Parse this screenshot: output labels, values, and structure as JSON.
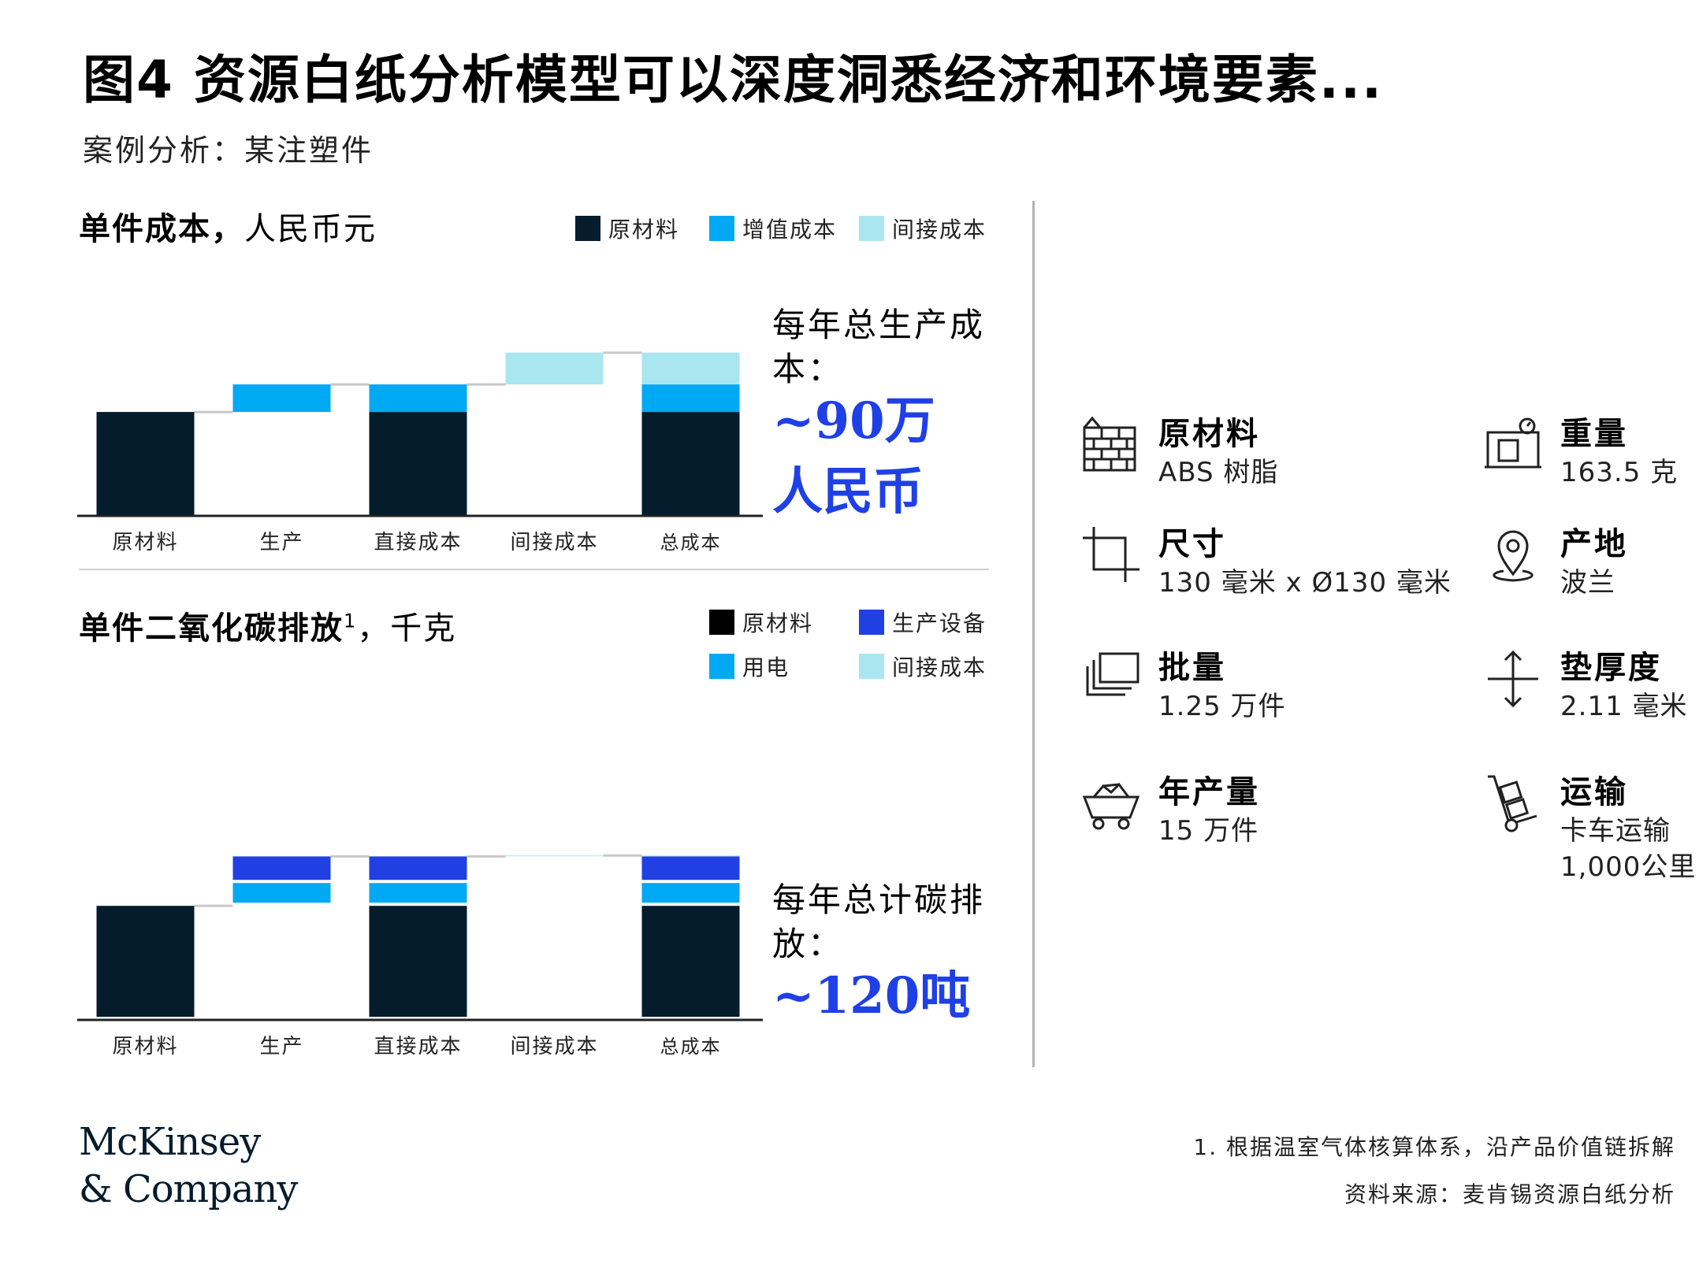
{
  "header": {
    "title": "图4 资源白纸分析模型可以深度洞悉经济和环境要素...",
    "subtitle": "案例分析：某注塑件"
  },
  "colors": {
    "navy": "#051c2c",
    "cyan": "#00a9f4",
    "light_cyan": "#aae6f0",
    "royal_blue": "#2140e3",
    "accent_blue": "#1f40e6"
  },
  "cost_section": {
    "title_bold": "单件成本，",
    "title_thin": "人民币元",
    "annotation_label": "每年总生产成本：",
    "annotation_value_line1": "~90万",
    "annotation_value_line2": "人民币"
  },
  "co2_section": {
    "title_bold": "单件二氧化碳排放",
    "title_sup": "1",
    "title_thin": "，千克",
    "annotation_label": "每年总计碳排放：",
    "annotation_value": "~120吨"
  },
  "chart_data": [
    {
      "type": "bar",
      "subtype": "waterfall",
      "title": "单件成本，人民币元",
      "categories": [
        "原材料",
        "生产",
        "直接成本",
        "间接成本",
        "总成本"
      ],
      "legend": [
        "原材料",
        "增值成本",
        "间接成本"
      ],
      "legend_placement": "top-right",
      "ylim": [
        0,
        78
      ],
      "grid": false,
      "series": [
        {
          "name": "原材料",
          "color": "#051c2c",
          "values": [
            49,
            0,
            49,
            0,
            49
          ]
        },
        {
          "name": "增值成本",
          "color": "#00a9f4",
          "values": [
            0,
            13,
            13,
            0,
            13
          ]
        },
        {
          "name": "间接成本",
          "color": "#aae6f0",
          "values": [
            0,
            0,
            0,
            15,
            15
          ]
        }
      ],
      "floating_base": [
        0,
        49,
        0,
        62,
        0
      ]
    },
    {
      "type": "bar",
      "subtype": "waterfall",
      "title": "单件二氧化碳排放1，千克",
      "categories": [
        "原材料",
        "生产",
        "直接成本",
        "间接成本",
        "总成本"
      ],
      "legend": [
        "原材料",
        "生产设备",
        "用电",
        "间接成本"
      ],
      "legend_placement": "top-right",
      "ylim": [
        0,
        1.16
      ],
      "grid": false,
      "series": [
        {
          "name": "原材料",
          "color": "#051c2c",
          "values": [
            0.6,
            0,
            0.6,
            0,
            0.6
          ]
        },
        {
          "name": "用电",
          "color": "#00a9f4",
          "values": [
            0,
            0.12,
            0.12,
            0,
            0.12
          ]
        },
        {
          "name": "生产设备",
          "color": "#2140e3",
          "values": [
            0,
            0.14,
            0.14,
            0,
            0.14
          ]
        },
        {
          "name": "间接成本",
          "color": "#aae6f0",
          "values": [
            0,
            0,
            0,
            0.005,
            0.005
          ]
        }
      ],
      "floating_base": [
        0,
        0.6,
        0,
        0.86,
        0
      ]
    }
  ],
  "specs": [
    {
      "label": "原材料",
      "value": "ABS 树脂",
      "icon": "bricks-icon"
    },
    {
      "label": "重量",
      "value": "163.5 克",
      "icon": "scale-icon"
    },
    {
      "label": "尺寸",
      "value": "130 毫米 x Ø130 毫米",
      "icon": "crop-icon"
    },
    {
      "label": "产地",
      "value": "波兰",
      "icon": "location-pin-icon"
    },
    {
      "label": "批量",
      "value": "1.25 万件",
      "icon": "stack-icon"
    },
    {
      "label": "垫厚度",
      "value": "2.11 毫米",
      "icon": "vertical-arrows-icon"
    },
    {
      "label": "年产量",
      "value": "15 万件",
      "icon": "minecart-icon"
    },
    {
      "label": "运输",
      "value": "卡车运输",
      "value2": "1,000公里",
      "icon": "hand-truck-icon"
    }
  ],
  "footer": {
    "logo_line1": "McKinsey",
    "logo_line2": "& Company",
    "note": "1. 根据温室气体核算体系，沿产品价值链拆解",
    "source": "资料来源：麦肯锡资源白纸分析"
  }
}
